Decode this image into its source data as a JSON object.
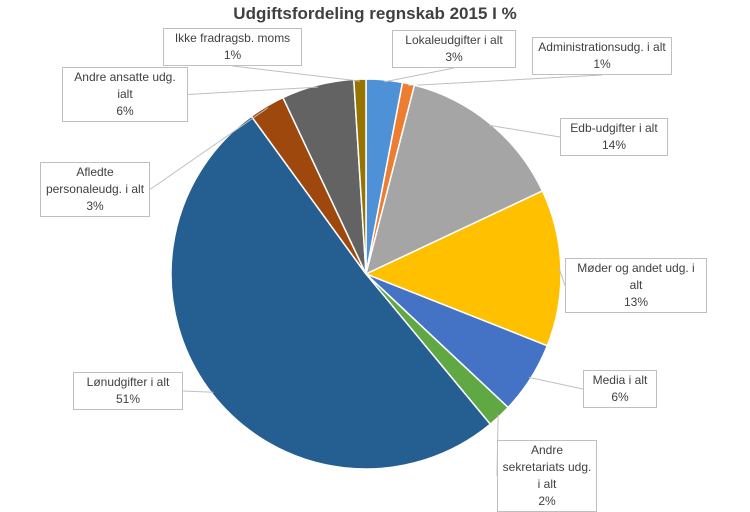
{
  "chart_data": {
    "type": "pie",
    "title": "Udgiftsfordeling regnskab 2015 I %",
    "categories": [
      "Lokaleudgifter i alt",
      "Administrationsudg. i alt",
      "Edb-udgifter i alt",
      "Møder og andet udg. i alt",
      "Media i alt",
      "Andre sekretariats udg. i alt",
      "Lønudgifter i alt",
      "Afledte personaleudg. i alt",
      "Andre ansatte udg. ialt",
      "Ikke fradragsb. moms"
    ],
    "values": [
      3,
      1,
      14,
      13,
      6,
      2,
      51,
      3,
      6,
      1
    ],
    "value_labels": [
      "3%",
      "1%",
      "14%",
      "13%",
      "6%",
      "2%",
      "51%",
      "3%",
      "6%",
      "1%"
    ],
    "colors": [
      "#4e91d6",
      "#ed7d31",
      "#a5a5a5",
      "#ffc000",
      "#4472c4",
      "#5fa843",
      "#255e91",
      "#9e480e",
      "#636363",
      "#997300"
    ]
  }
}
